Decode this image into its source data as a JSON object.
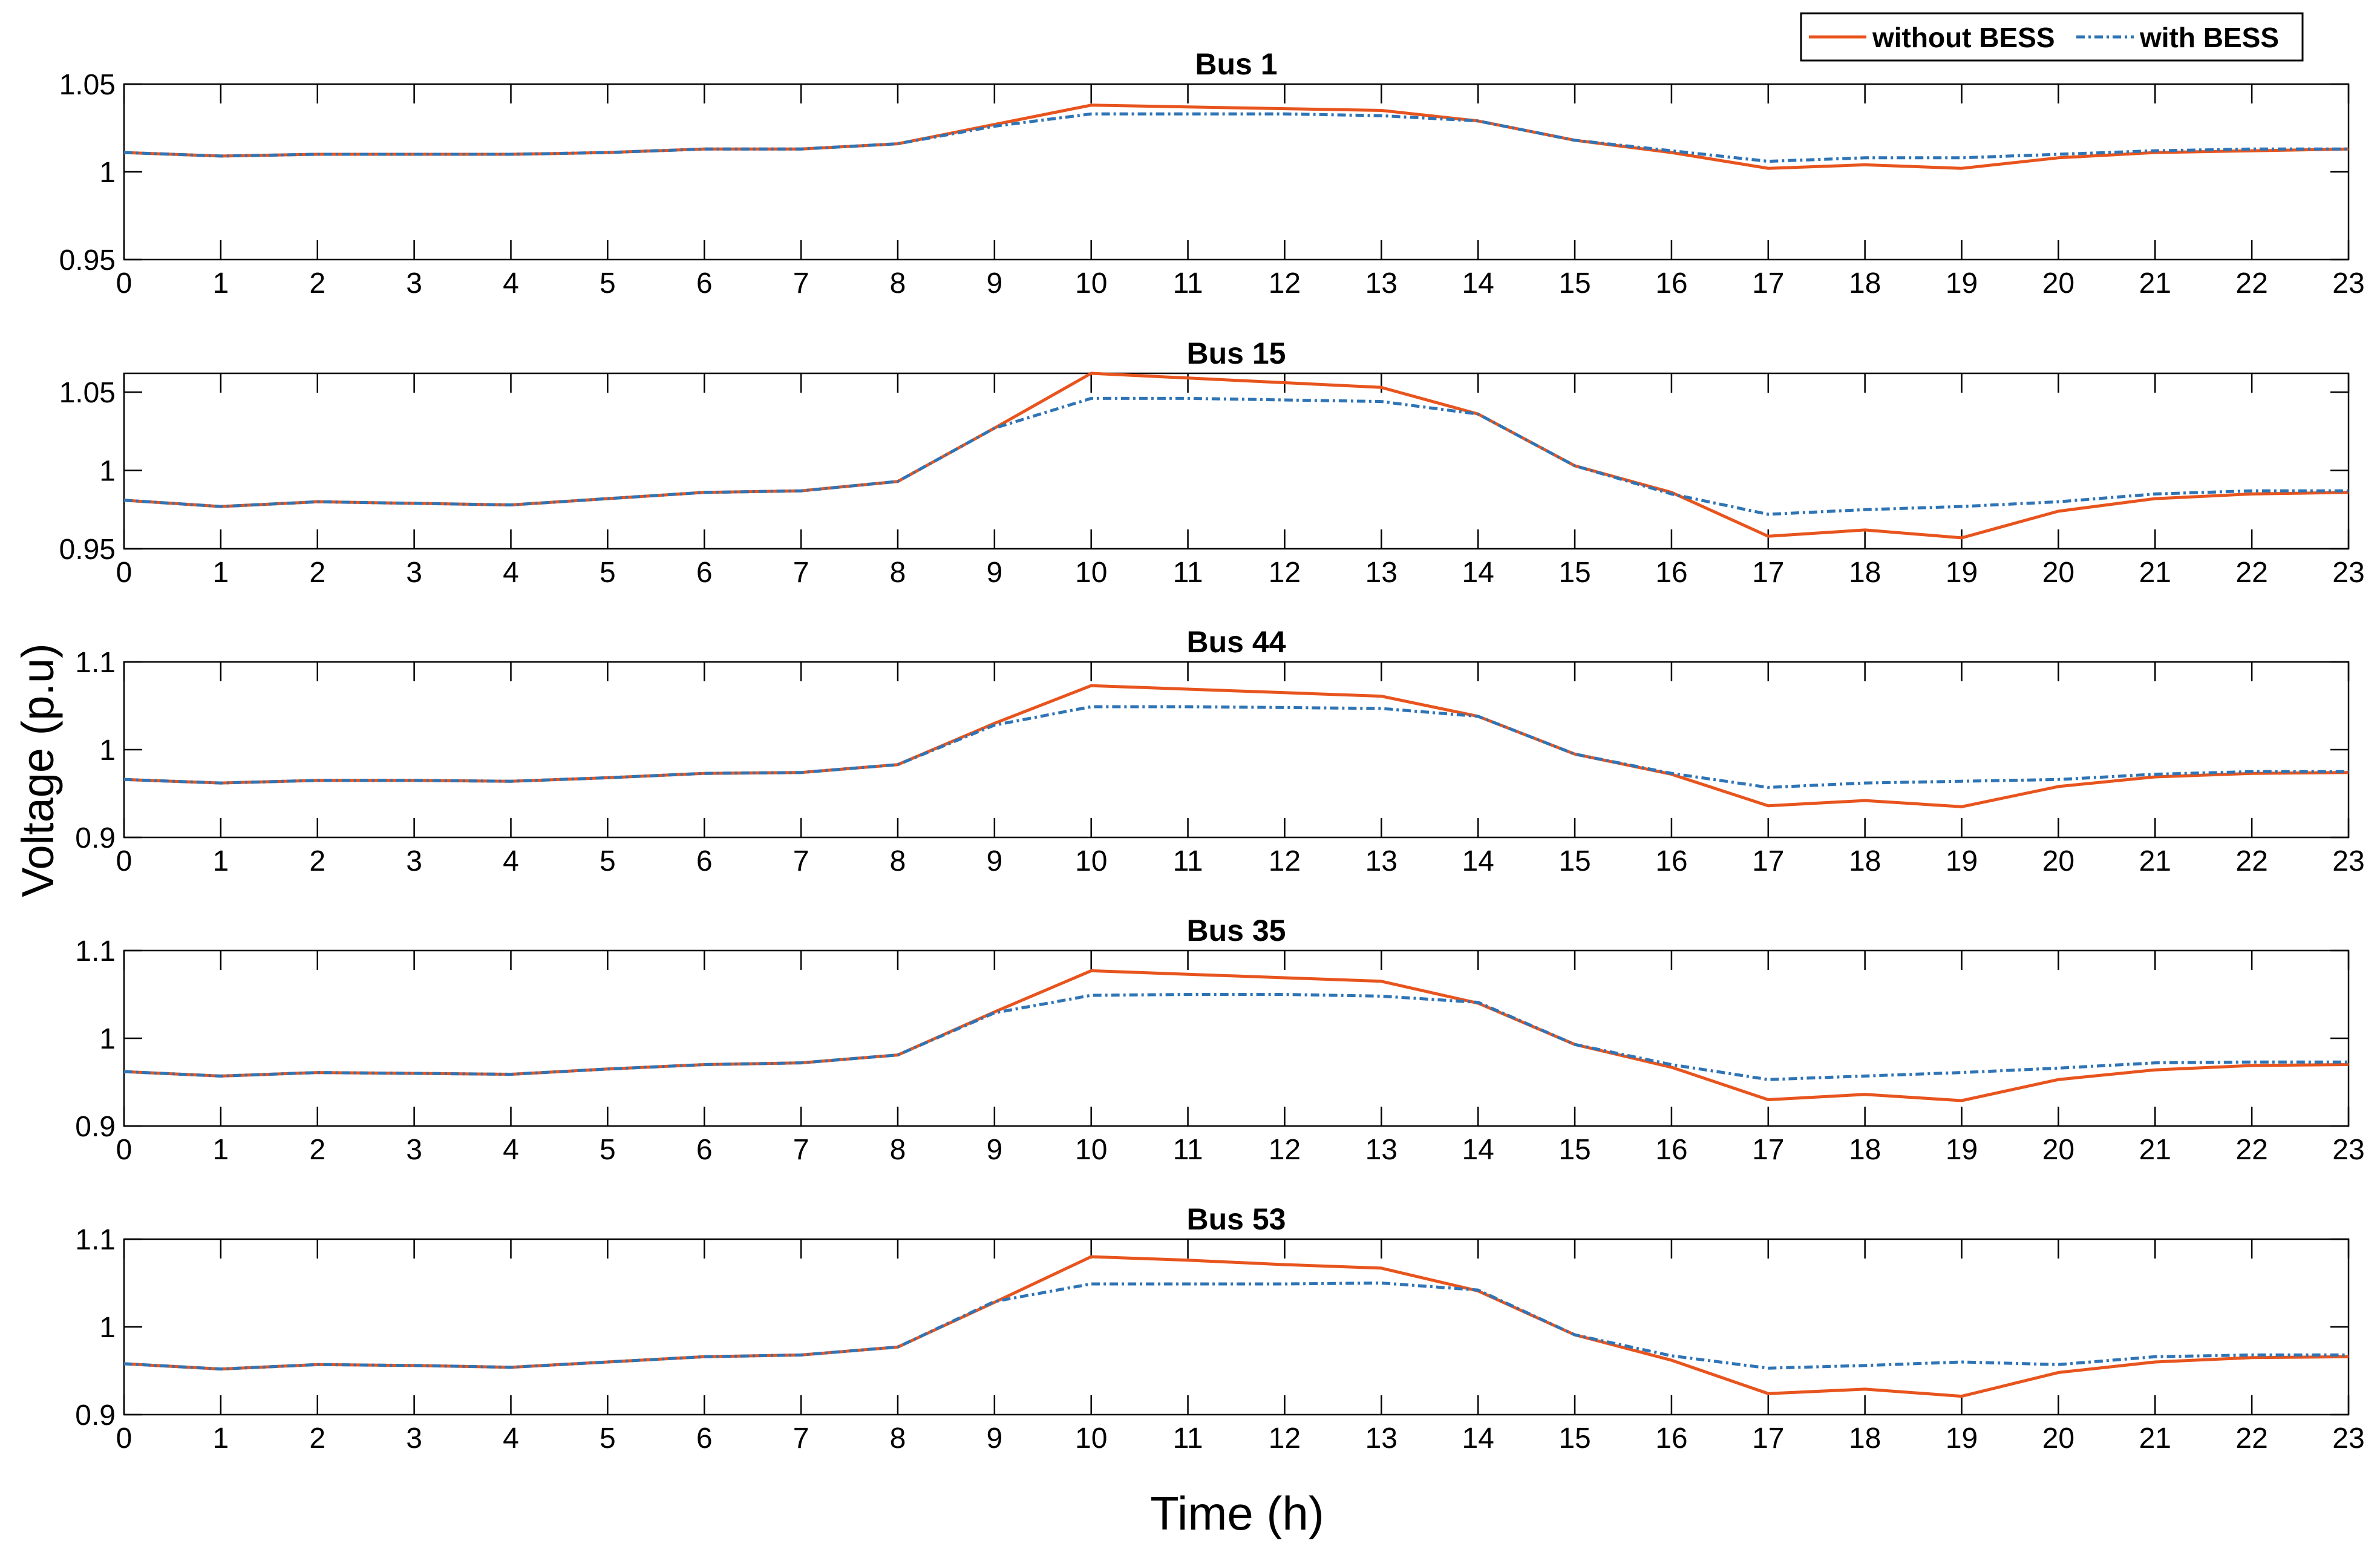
{
  "chart_data": {
    "type": "line",
    "ylabel": "Voltage (p.u)",
    "xlabel": "Time (h)",
    "x": [
      0,
      1,
      2,
      3,
      4,
      5,
      6,
      7,
      8,
      9,
      10,
      11,
      12,
      13,
      14,
      15,
      16,
      17,
      18,
      19,
      20,
      21,
      22,
      23
    ],
    "xlim": [
      0,
      23
    ],
    "grid": false,
    "legend": {
      "placement": "top-right",
      "entries": [
        {
          "name": "without BESS",
          "color": "#e8541d",
          "style": "solid"
        },
        {
          "name": "with BESS",
          "color": "#2f74b5",
          "style": "dash-dot"
        }
      ]
    },
    "panels": [
      {
        "title": "Bus 1",
        "ylim": [
          0.95,
          1.05
        ],
        "yticks": [
          0.95,
          1,
          1.05
        ],
        "ytick_labels": [
          "0.95",
          "1",
          "1.05"
        ],
        "series": [
          {
            "name": "without BESS",
            "values": [
              1.011,
              1.009,
              1.01,
              1.01,
              1.01,
              1.011,
              1.013,
              1.013,
              1.016,
              1.027,
              1.038,
              1.037,
              1.036,
              1.035,
              1.029,
              1.018,
              1.011,
              1.002,
              1.004,
              1.002,
              1.008,
              1.011,
              1.012,
              1.013
            ]
          },
          {
            "name": "with BESS",
            "values": [
              1.011,
              1.009,
              1.01,
              1.01,
              1.01,
              1.011,
              1.013,
              1.013,
              1.016,
              1.026,
              1.033,
              1.033,
              1.033,
              1.032,
              1.029,
              1.018,
              1.012,
              1.006,
              1.008,
              1.008,
              1.01,
              1.012,
              1.013,
              1.013
            ]
          }
        ]
      },
      {
        "title": "Bus 15",
        "ylim": [
          0.95,
          1.062
        ],
        "yticks": [
          0.95,
          1,
          1.05
        ],
        "ytick_labels": [
          "0.95",
          "1",
          "1.05"
        ],
        "series": [
          {
            "name": "without BESS",
            "values": [
              0.981,
              0.977,
              0.98,
              0.979,
              0.978,
              0.982,
              0.986,
              0.987,
              0.993,
              1.027,
              1.062,
              1.059,
              1.056,
              1.053,
              1.036,
              1.003,
              0.986,
              0.958,
              0.962,
              0.957,
              0.974,
              0.982,
              0.985,
              0.986
            ]
          },
          {
            "name": "with BESS",
            "values": [
              0.981,
              0.977,
              0.98,
              0.979,
              0.978,
              0.982,
              0.986,
              0.987,
              0.993,
              1.027,
              1.046,
              1.046,
              1.045,
              1.044,
              1.036,
              1.003,
              0.985,
              0.972,
              0.975,
              0.977,
              0.98,
              0.985,
              0.987,
              0.987
            ]
          }
        ]
      },
      {
        "title": "Bus 44",
        "ylim": [
          0.9,
          1.1
        ],
        "yticks": [
          0.9,
          1,
          1.1
        ],
        "ytick_labels": [
          "0.9",
          "1",
          "1.1"
        ],
        "series": [
          {
            "name": "without BESS",
            "values": [
              0.966,
              0.962,
              0.965,
              0.965,
              0.964,
              0.968,
              0.973,
              0.974,
              0.983,
              1.03,
              1.073,
              1.069,
              1.065,
              1.061,
              1.038,
              0.995,
              0.972,
              0.936,
              0.942,
              0.935,
              0.958,
              0.969,
              0.973,
              0.974
            ]
          },
          {
            "name": "with BESS",
            "values": [
              0.966,
              0.962,
              0.965,
              0.965,
              0.964,
              0.968,
              0.973,
              0.974,
              0.983,
              1.028,
              1.049,
              1.049,
              1.048,
              1.047,
              1.038,
              0.995,
              0.973,
              0.957,
              0.962,
              0.964,
              0.966,
              0.972,
              0.975,
              0.975
            ]
          }
        ]
      },
      {
        "title": "Bus 35",
        "ylim": [
          0.9,
          1.1
        ],
        "yticks": [
          0.9,
          1,
          1.1
        ],
        "ytick_labels": [
          "0.9",
          "1",
          "1.1"
        ],
        "series": [
          {
            "name": "without BESS",
            "values": [
              0.962,
              0.957,
              0.961,
              0.96,
              0.959,
              0.965,
              0.97,
              0.972,
              0.981,
              1.03,
              1.077,
              1.073,
              1.069,
              1.065,
              1.04,
              0.993,
              0.967,
              0.93,
              0.936,
              0.929,
              0.953,
              0.964,
              0.969,
              0.97
            ]
          },
          {
            "name": "with BESS",
            "values": [
              0.962,
              0.957,
              0.961,
              0.96,
              0.959,
              0.965,
              0.97,
              0.972,
              0.981,
              1.029,
              1.049,
              1.05,
              1.05,
              1.048,
              1.041,
              0.993,
              0.97,
              0.953,
              0.957,
              0.961,
              0.966,
              0.972,
              0.973,
              0.973
            ]
          }
        ]
      },
      {
        "title": "Bus 53",
        "ylim": [
          0.9,
          1.1
        ],
        "yticks": [
          0.9,
          1,
          1.1
        ],
        "ytick_labels": [
          "0.9",
          "1",
          "1.1"
        ],
        "series": [
          {
            "name": "without BESS",
            "values": [
              0.958,
              0.952,
              0.957,
              0.956,
              0.954,
              0.96,
              0.966,
              0.968,
              0.977,
              1.028,
              1.08,
              1.076,
              1.071,
              1.067,
              1.041,
              0.991,
              0.962,
              0.924,
              0.929,
              0.921,
              0.948,
              0.96,
              0.965,
              0.966
            ]
          },
          {
            "name": "with BESS",
            "values": [
              0.958,
              0.952,
              0.957,
              0.956,
              0.954,
              0.96,
              0.966,
              0.968,
              0.977,
              1.029,
              1.049,
              1.049,
              1.049,
              1.05,
              1.042,
              0.991,
              0.967,
              0.953,
              0.956,
              0.96,
              0.957,
              0.966,
              0.968,
              0.968
            ]
          }
        ]
      }
    ]
  }
}
